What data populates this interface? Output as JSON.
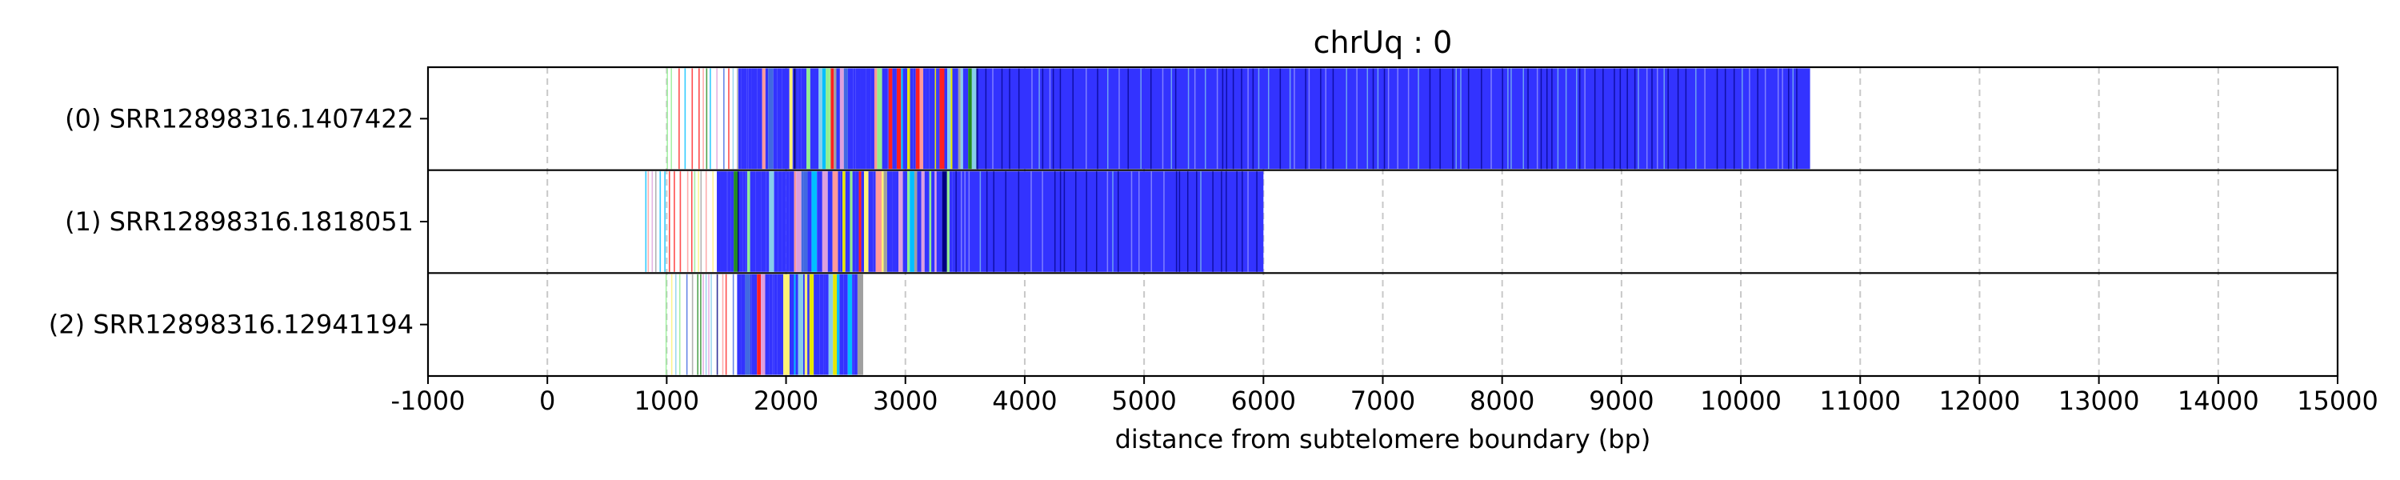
{
  "chart_data": {
    "type": "bar",
    "title": "chrUq : 0",
    "xlabel": "distance from subtelomere boundary (bp)",
    "ylabel": "",
    "xlim": [
      -1000,
      15000
    ],
    "xticks": [
      -1000,
      0,
      1000,
      2000,
      3000,
      4000,
      5000,
      6000,
      7000,
      8000,
      9000,
      10000,
      11000,
      12000,
      13000,
      14000,
      15000
    ],
    "grid": "vertical dashed",
    "rows": [
      {
        "label": "(0) SRR12898316.1407422",
        "start": 1000,
        "end": 10580
      },
      {
        "label": "(1) SRR12898316.1818051",
        "start": 820,
        "end": 6000
      },
      {
        "label": "(2) SRR12898316.12941194",
        "start": 990,
        "end": 2630
      }
    ],
    "colors": {
      "dominant": "#3333ff",
      "segments": [
        "#000080",
        "#4169e1",
        "#00bfff",
        "#87ceeb",
        "#e6e600",
        "#fff176",
        "#228b22",
        "#90ee90",
        "#ff2020",
        "#ff9999",
        "#dda0dd",
        "#a0a0a0"
      ]
    }
  }
}
